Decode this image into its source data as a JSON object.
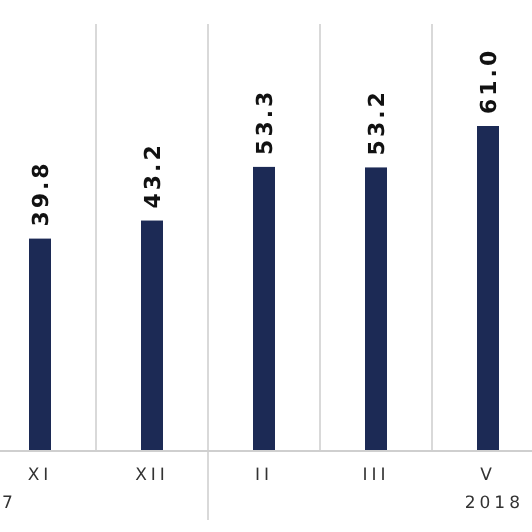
{
  "chart_data": {
    "type": "bar",
    "categories": [
      "XI",
      "XII",
      "II",
      "III",
      "V"
    ],
    "values": [
      39.8,
      43.2,
      53.3,
      53.2,
      61.0
    ],
    "color": "#1c2a55",
    "value_labels": [
      "39.8",
      "43.2",
      "53.3",
      "53.2",
      "61.0"
    ],
    "grid": "x",
    "annotations": [
      "7",
      "2018"
    ]
  }
}
